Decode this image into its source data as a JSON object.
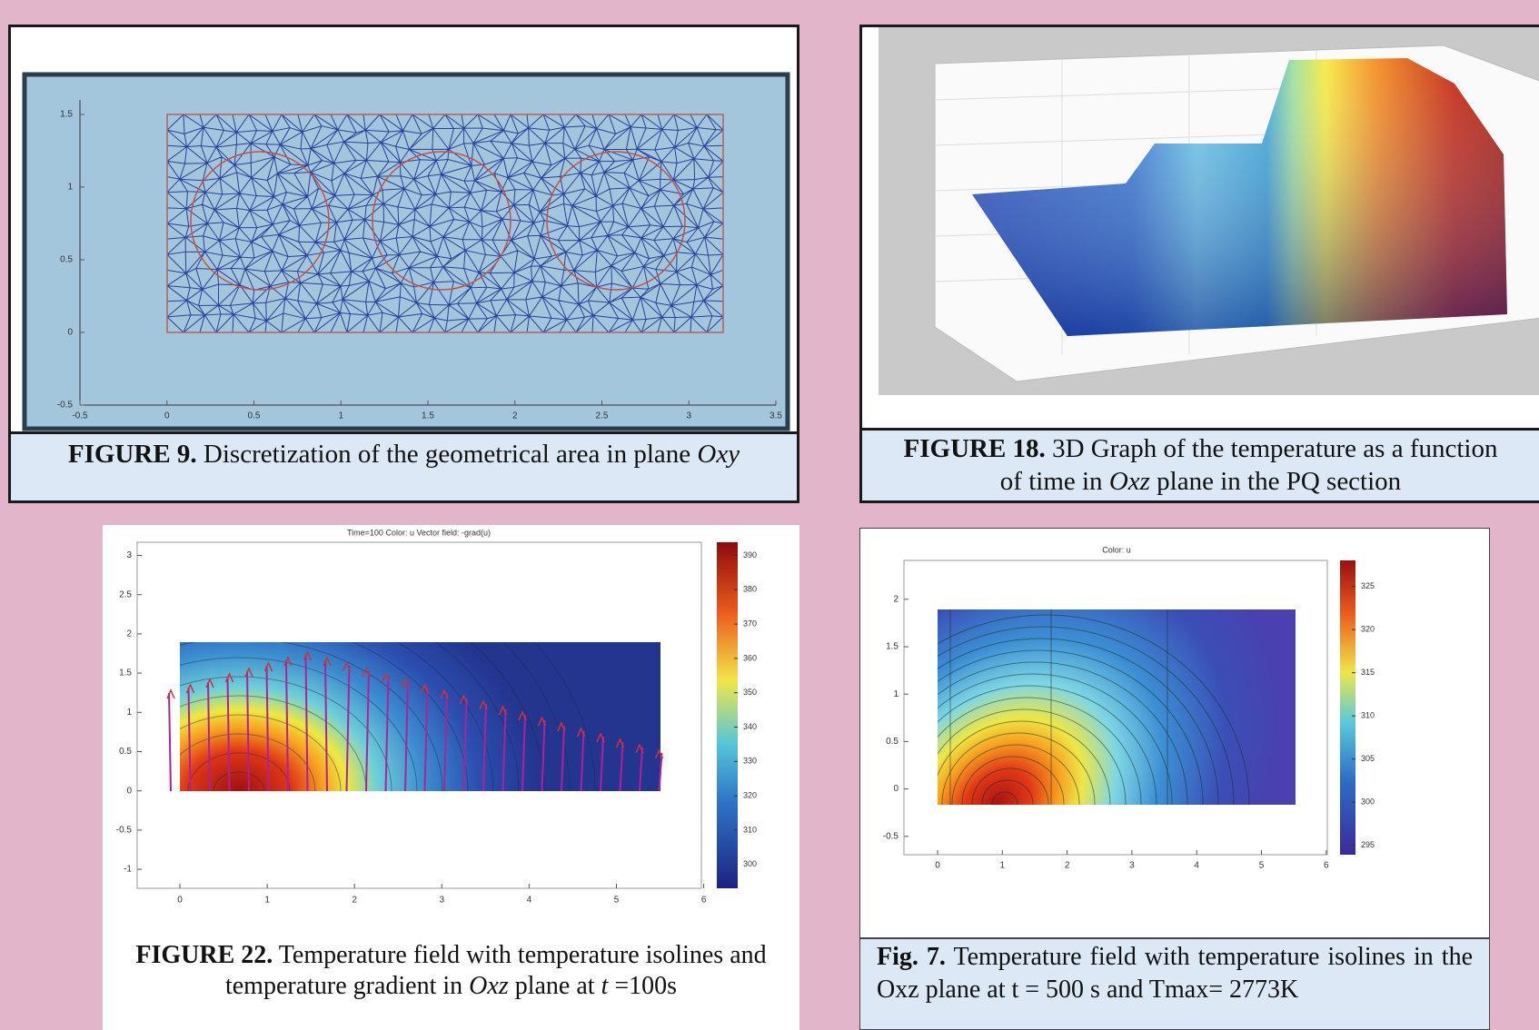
{
  "figures": [
    {
      "caption": [
        {
          "text": "FIGURE 9.",
          "style": "bold"
        },
        {
          "text": " Discretization of the geometrical area in plane ",
          "style": "normal"
        },
        {
          "text": "Oxy",
          "style": "italic"
        }
      ],
      "plot": {
        "xticks": [
          -0.5,
          0,
          0.5,
          1,
          1.5,
          2,
          2.5,
          3,
          3.5
        ],
        "yticks": [
          -0.5,
          0,
          0.5,
          1,
          1.5
        ]
      }
    },
    {
      "caption": [
        {
          "text": "FIGURE 18.",
          "style": "bold"
        },
        {
          "text": " 3D Graph of the temperature as a function of time in ",
          "style": "normal"
        },
        {
          "text": "Oxz",
          "style": "italic"
        },
        {
          "text": " plane in the PQ section",
          "style": "normal"
        }
      ]
    },
    {
      "caption": [
        {
          "text": "FIGURE 22.",
          "style": "bold"
        },
        {
          "text": " Temperature field with temperature isolines and temperature gradient in ",
          "style": "normal"
        },
        {
          "text": "Oxz",
          "style": "italic"
        },
        {
          "text": " plane at ",
          "style": "normal"
        },
        {
          "text": "t",
          "style": "italic"
        },
        {
          "text": " =100s",
          "style": "normal"
        }
      ],
      "plot": {
        "title": "Time=100  Color: u  Vector field: -grad(u)",
        "xticks": [
          0,
          1,
          2,
          3,
          4,
          5,
          6
        ],
        "yticks": [
          -1,
          -0.5,
          0,
          0.5,
          1,
          1.5,
          2,
          2.5,
          3
        ],
        "colorbar_ticks": [
          300,
          310,
          320,
          330,
          340,
          350,
          360,
          370,
          380,
          390
        ]
      }
    },
    {
      "caption": [
        {
          "text": "Fig. 7.",
          "style": "bold"
        },
        {
          "text": " Temperature field with temperature isolines in the Oxz plane at t = 500 s and Tmax= 2773K",
          "style": "normal"
        }
      ],
      "plot": {
        "title": "Color: u",
        "xticks": [
          0,
          1,
          2,
          3,
          4,
          5,
          6
        ],
        "yticks": [
          -0.5,
          0,
          0.5,
          1,
          1.5,
          2
        ],
        "colorbar_ticks": [
          295,
          300,
          305,
          310,
          315,
          320,
          325
        ]
      }
    }
  ]
}
